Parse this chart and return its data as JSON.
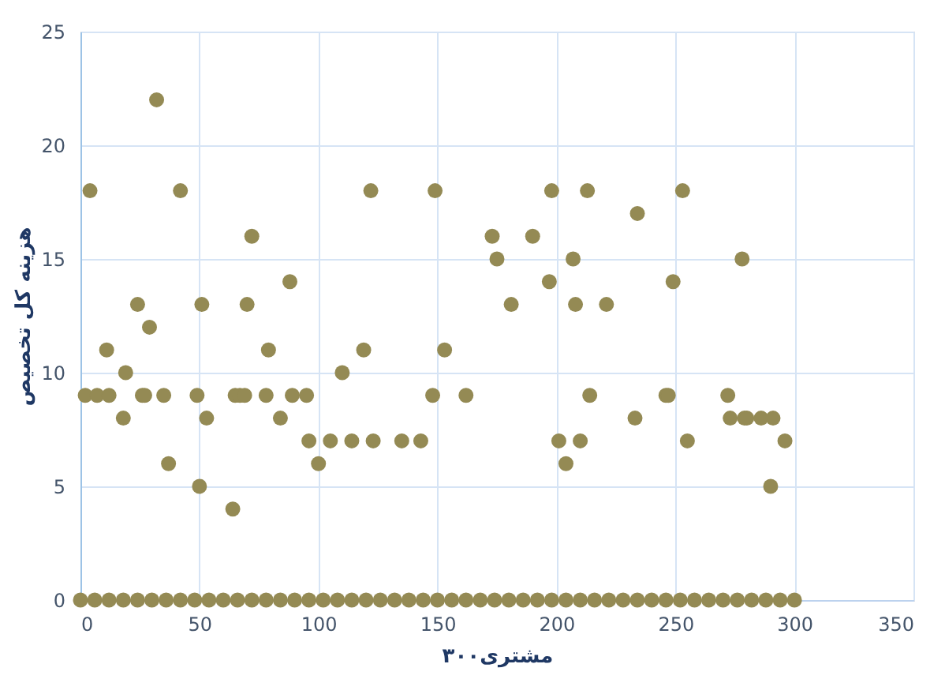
{
  "chart_data": {
    "type": "scatter",
    "xlabel": "۳۰۰مشتری",
    "ylabel": "هزینه کل تخصیص",
    "series": [
      {
        "color": "#948a54",
        "x": [
          2,
          4,
          7,
          11,
          12,
          18,
          19,
          24,
          26,
          27,
          29,
          32,
          35,
          37,
          42,
          49,
          50,
          51,
          53,
          64,
          65,
          67,
          69,
          70,
          72,
          78,
          79,
          84,
          88,
          89,
          95,
          96,
          100,
          105,
          110,
          114,
          119,
          122,
          123,
          135,
          143,
          148,
          149,
          153,
          162,
          173,
          175,
          181,
          190,
          197,
          198,
          201,
          204,
          207,
          208,
          210,
          213,
          214,
          221,
          233,
          234,
          246,
          247,
          249,
          253,
          255,
          272,
          273,
          278,
          279,
          280,
          286,
          290,
          291,
          296
        ],
        "values": [
          9,
          18,
          9,
          11,
          9,
          8,
          10,
          13,
          9,
          9,
          12,
          22,
          9,
          6,
          18,
          9,
          5,
          13,
          8,
          4,
          9,
          9,
          9,
          13,
          16,
          9,
          11,
          8,
          14,
          9,
          9,
          7,
          6,
          7,
          10,
          7,
          11,
          18,
          7,
          7,
          7,
          9,
          18,
          11,
          9,
          16,
          15,
          13,
          16,
          14,
          18,
          7,
          6,
          15,
          13,
          7,
          18,
          9,
          13,
          8,
          17,
          9,
          9,
          14,
          18,
          7,
          9,
          8,
          15,
          8,
          8,
          8,
          5,
          8,
          7
        ]
      },
      {
        "color": "#948a54",
        "x": [
          0,
          6,
          12,
          18,
          24,
          30,
          36,
          42,
          48,
          54,
          60,
          66,
          72,
          78,
          84,
          90,
          96,
          102,
          108,
          114,
          120,
          126,
          132,
          138,
          144,
          150,
          156,
          162,
          168,
          174,
          180,
          186,
          192,
          198,
          204,
          210,
          216,
          222,
          228,
          234,
          240,
          246,
          252,
          258,
          264,
          270,
          276,
          282,
          288,
          294,
          300
        ],
        "values": [
          0,
          0,
          0,
          0,
          0,
          0,
          0,
          0,
          0,
          0,
          0,
          0,
          0,
          0,
          0,
          0,
          0,
          0,
          0,
          0,
          0,
          0,
          0,
          0,
          0,
          0,
          0,
          0,
          0,
          0,
          0,
          0,
          0,
          0,
          0,
          0,
          0,
          0,
          0,
          0,
          0,
          0,
          0,
          0,
          0,
          0,
          0,
          0,
          0,
          0,
          0
        ]
      }
    ],
    "xlim": [
      0,
      350
    ],
    "xticks": [
      0,
      50,
      100,
      150,
      200,
      250,
      300,
      350
    ],
    "ylim": [
      0,
      25
    ],
    "yticks": [
      0,
      5,
      10,
      15,
      20,
      25
    ],
    "grid": true,
    "marker": "circle"
  }
}
